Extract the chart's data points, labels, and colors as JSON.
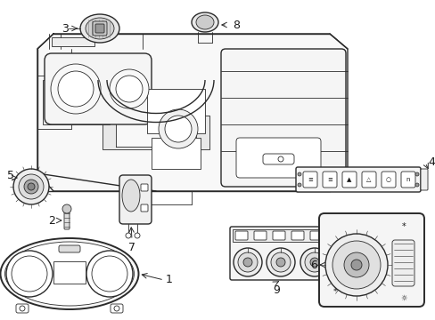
{
  "bg_color": "#ffffff",
  "line_color": "#2a2a2a",
  "label_color": "#1a1a1a",
  "figsize": [
    4.89,
    3.6
  ],
  "dpi": 100,
  "lw_main": 1.0,
  "lw_thin": 0.6,
  "lw_thick": 1.4
}
